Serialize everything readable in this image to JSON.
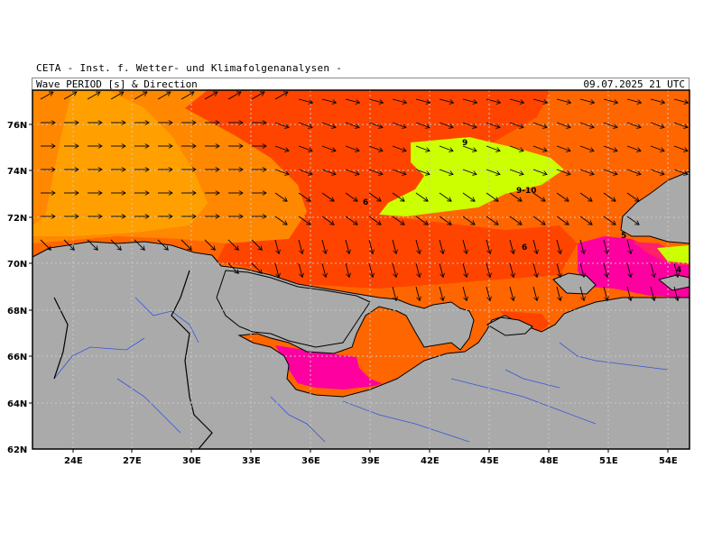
{
  "header": {
    "source": "CETA - Inst. f. Wetter- und Klimafolgenanalysen -",
    "title": "Wave PERIOD [s] & Direction",
    "datetime": "09.07.2025 21 UTC"
  },
  "map": {
    "lon_range": [
      22,
      55
    ],
    "lat_range": [
      62,
      77.5
    ],
    "lon_ticks": [
      "24E",
      "27E",
      "30E",
      "33E",
      "36E",
      "39E",
      "42E",
      "45E",
      "48E",
      "51E",
      "54E"
    ],
    "lat_ticks": [
      "62N",
      "64N",
      "66N",
      "68N",
      "70N",
      "72N",
      "74N",
      "76N"
    ],
    "contour_labels": [
      "9",
      "6",
      "9-10",
      "6",
      "5",
      "4"
    ],
    "colors": {
      "land": "#aaaaaa",
      "p4": "#ff00a0",
      "p5": "#ff4400",
      "p6": "#ff6600",
      "p7": "#ff8800",
      "p8": "#ffa000",
      "p9": "#ccff00",
      "coast": "#000000",
      "rivers": "#3355dd",
      "grid": "#c8c8c8"
    }
  }
}
